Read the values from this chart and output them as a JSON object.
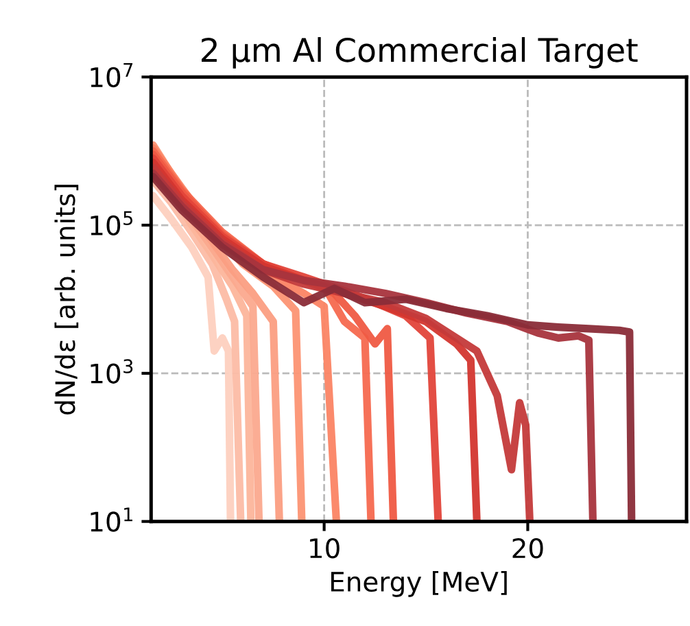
{
  "chart_data": {
    "type": "line",
    "title": "2 μm Al Commercial Target",
    "xlabel": "Energy [MeV]",
    "ylabel": "dN/dε [arb. units]",
    "log": "y",
    "xlim": [
      1.5,
      27.8
    ],
    "xticks": [
      10,
      20
    ],
    "ylim": [
      10,
      10000000
    ],
    "yticks": [
      {
        "value": 10,
        "label": "10$^{1}$"
      },
      {
        "value": 1000,
        "label": "10$^{3}$"
      },
      {
        "value": 100000,
        "label": "10$^{5}$"
      },
      {
        "value": 10000000,
        "label": "10$^{7}$"
      }
    ],
    "grid": true,
    "line_style": "solid",
    "marker": "none",
    "series": [
      {
        "color": "#fdd0bf",
        "x": [
          1.6,
          2.5,
          3.5,
          4.3,
          4.6,
          5.0,
          5.3,
          5.4
        ],
        "values": [
          250000,
          120000,
          50000,
          20000,
          2000,
          3000,
          2000,
          10
        ]
      },
      {
        "color": "#fcbca5",
        "x": [
          1.6,
          2.5,
          3.5,
          4.5,
          5.2,
          5.6,
          5.9
        ],
        "values": [
          400000,
          200000,
          80000,
          30000,
          10000,
          5000,
          10
        ]
      },
      {
        "color": "#fcb59b",
        "x": [
          1.6,
          2.5,
          3.5,
          4.5,
          5.5,
          6.2,
          6.4
        ],
        "values": [
          600000,
          280000,
          100000,
          40000,
          15000,
          6000,
          10
        ]
      },
      {
        "color": "#fba98e",
        "x": [
          1.6,
          2.5,
          3.5,
          4.5,
          5.5,
          6.5,
          6.8
        ],
        "values": [
          800000,
          300000,
          120000,
          50000,
          20000,
          8000,
          10
        ]
      },
      {
        "color": "#fb9e82",
        "x": [
          1.6,
          2.5,
          3.5,
          4.5,
          5.5,
          6.5,
          7.5,
          7.8
        ],
        "values": [
          1000000,
          400000,
          150000,
          60000,
          25000,
          12000,
          5000,
          10
        ]
      },
      {
        "color": "#fc9373",
        "x": [
          1.6,
          3,
          4.5,
          6,
          7.5,
          8.6,
          8.9
        ],
        "values": [
          1200000,
          300000,
          80000,
          30000,
          15000,
          7000,
          10
        ]
      },
      {
        "color": "#fb8464",
        "x": [
          1.6,
          3,
          4.5,
          6,
          7.5,
          9,
          10,
          10.6
        ],
        "values": [
          1100000,
          320000,
          90000,
          35000,
          20000,
          12000,
          8000,
          10
        ]
      },
      {
        "color": "#f6694f",
        "x": [
          1.6,
          3,
          5,
          7,
          8.5,
          10,
          11,
          12,
          12.3
        ],
        "values": [
          1000000,
          300000,
          80000,
          30000,
          20000,
          15000,
          5000,
          3000,
          10
        ]
      },
      {
        "color": "#ef5a43",
        "x": [
          1.6,
          3,
          5,
          7,
          9,
          10.5,
          11.5,
          12.5,
          13.1,
          13.4
        ],
        "values": [
          900000,
          280000,
          75000,
          30000,
          18000,
          12000,
          6000,
          2500,
          4000,
          10
        ]
      },
      {
        "color": "#e2453a",
        "x": [
          1.6,
          3,
          5,
          7,
          9,
          11,
          12.5,
          14,
          15.2,
          15.6
        ],
        "values": [
          800000,
          250000,
          70000,
          30000,
          20000,
          13000,
          9000,
          6000,
          3000,
          10
        ]
      },
      {
        "color": "#d3362f",
        "x": [
          1.6,
          3,
          5,
          7,
          9,
          11,
          13,
          15,
          16.5,
          17.2,
          17.5
        ],
        "values": [
          700000,
          220000,
          65000,
          28000,
          18000,
          12000,
          8000,
          5000,
          2500,
          1500,
          10
        ]
      },
      {
        "color": "#c43a3a",
        "x": [
          1.6,
          3,
          5,
          7,
          9,
          11,
          13,
          15,
          16.5,
          17.5,
          18.5,
          19.2,
          19.6,
          19.9,
          20.1
        ],
        "values": [
          600000,
          200000,
          60000,
          25000,
          16000,
          12000,
          9000,
          5500,
          3000,
          2000,
          500,
          50,
          400,
          200,
          10
        ]
      },
      {
        "color": "#a8343d",
        "x": [
          1.6,
          3,
          5,
          7,
          9,
          11,
          13,
          15,
          17,
          19,
          20.5,
          21.5,
          22.5,
          23,
          23.2
        ],
        "values": [
          500000,
          180000,
          55000,
          25000,
          18000,
          15000,
          12000,
          9000,
          6500,
          5000,
          3500,
          3000,
          3200,
          2800,
          10
        ]
      },
      {
        "color": "#8a2c38",
        "x": [
          1.6,
          3,
          5,
          7,
          9,
          10.5,
          12,
          14,
          16,
          18,
          20,
          21.5,
          23,
          24.5,
          25,
          25.1
        ],
        "values": [
          450000,
          160000,
          50000,
          20000,
          9000,
          14000,
          9000,
          10000,
          7500,
          6000,
          4500,
          4200,
          4000,
          3800,
          3600,
          10
        ]
      }
    ]
  }
}
